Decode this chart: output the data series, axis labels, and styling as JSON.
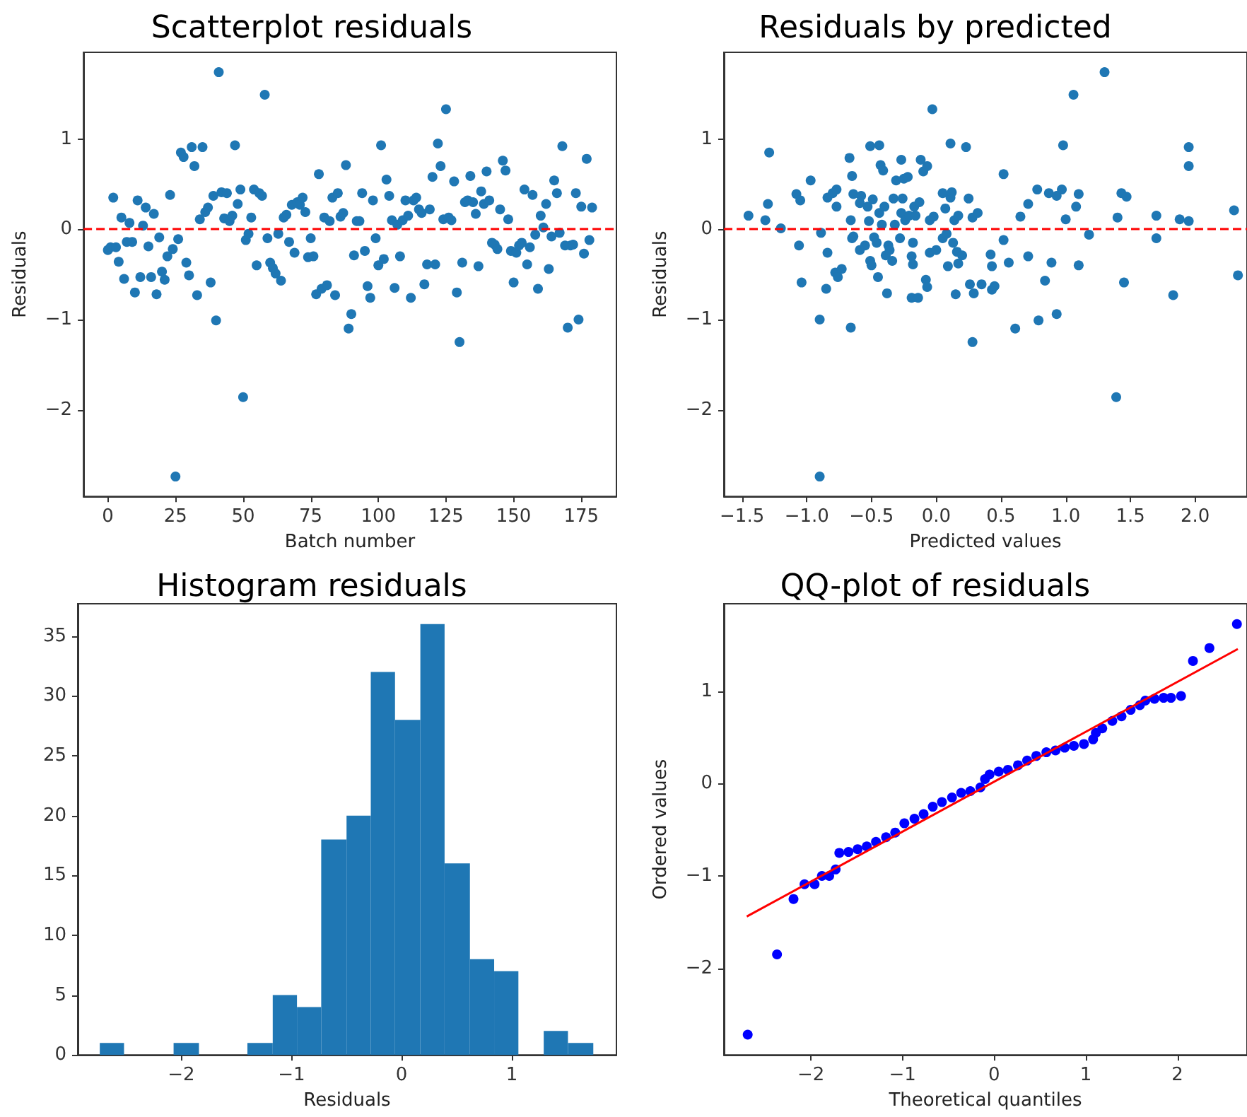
{
  "chart_data": [
    {
      "type": "scatter",
      "title": "Scatterplot residuals",
      "xlabel": "Batch number",
      "ylabel": "Residuals",
      "marker": "circle",
      "xlim": [
        -9,
        188
      ],
      "ylim": [
        -2.96,
        1.96
      ],
      "xticks": [
        0,
        25,
        50,
        75,
        100,
        125,
        150,
        175
      ],
      "yticks": [
        -2,
        -1,
        0,
        1
      ],
      "ref_lines": [
        {
          "axis": "y",
          "value": 0,
          "color": "#ff0000",
          "line_style": "dashed"
        }
      ],
      "series": [
        {
          "color": "#1f77b4",
          "x": [
            0,
            1,
            2,
            3,
            4,
            5,
            6,
            7,
            8,
            9,
            10,
            11,
            12,
            13,
            14,
            15,
            16,
            17,
            18,
            19,
            20,
            21,
            22,
            23,
            24,
            25,
            26,
            27,
            28,
            29,
            30,
            31,
            32,
            33,
            34,
            35,
            36,
            37,
            38,
            39,
            40,
            41,
            42,
            43,
            44,
            45,
            46,
            47,
            48,
            49,
            50,
            51,
            52,
            53,
            54,
            55,
            56,
            57,
            58,
            59,
            60,
            61,
            62,
            63,
            64,
            65,
            66,
            67,
            68,
            69,
            70,
            71,
            72,
            73,
            74,
            75,
            76,
            77,
            78,
            79,
            80,
            81,
            82,
            83,
            84,
            85,
            86,
            87,
            88,
            89,
            90,
            91,
            92,
            93,
            94,
            95,
            96,
            97,
            98,
            99,
            100,
            101,
            102,
            103,
            104,
            105,
            106,
            107,
            108,
            109,
            110,
            111,
            112,
            113,
            114,
            115,
            116,
            117,
            118,
            119,
            120,
            121,
            122,
            123,
            124,
            125,
            126,
            127,
            128,
            129,
            130,
            131,
            132,
            133,
            134,
            135,
            136,
            137,
            138,
            139,
            140,
            141,
            142,
            143,
            144,
            145,
            146,
            147,
            148,
            149,
            150,
            151,
            152,
            153,
            154,
            155,
            156,
            157,
            158,
            159,
            160,
            161,
            162,
            163,
            164,
            165,
            166,
            167,
            168,
            169,
            170,
            171,
            172,
            173,
            174,
            175,
            176,
            177,
            178,
            179
          ],
          "values": [
            -0.23,
            -0.2,
            0.35,
            -0.2,
            -0.36,
            0.13,
            -0.55,
            -0.14,
            0.07,
            -0.14,
            -0.7,
            0.32,
            -0.53,
            0.04,
            0.24,
            -0.19,
            -0.53,
            0.17,
            -0.72,
            -0.09,
            -0.47,
            -0.56,
            -0.3,
            0.38,
            -0.22,
            -2.74,
            -0.11,
            0.85,
            0.8,
            -0.37,
            -0.51,
            0.91,
            0.7,
            -0.73,
            0.11,
            0.91,
            0.19,
            0.24,
            -0.59,
            0.37,
            -1.01,
            1.74,
            0.41,
            0.12,
            0.4,
            0.09,
            0.15,
            0.93,
            0.28,
            0.44,
            -1.86,
            -0.12,
            -0.05,
            0.13,
            0.44,
            -0.4,
            0.4,
            0.37,
            1.49,
            -0.1,
            -0.37,
            -0.43,
            -0.49,
            -0.05,
            -0.57,
            0.13,
            0.16,
            -0.14,
            0.27,
            -0.26,
            0.3,
            0.27,
            0.35,
            0.19,
            -0.31,
            -0.1,
            -0.3,
            -0.72,
            0.61,
            -0.66,
            0.13,
            -0.62,
            0.09,
            0.35,
            -0.73,
            0.4,
            0.14,
            0.18,
            0.71,
            -1.1,
            -0.94,
            -0.29,
            0.09,
            0.09,
            0.4,
            -0.24,
            -0.63,
            -0.76,
            0.32,
            -0.1,
            -0.4,
            0.93,
            -0.33,
            0.55,
            0.37,
            0.1,
            -0.65,
            0.05,
            -0.3,
            0.1,
            0.32,
            0.15,
            -0.76,
            0.32,
            0.35,
            0.22,
            0.18,
            -0.61,
            -0.39,
            0.22,
            0.58,
            -0.39,
            0.95,
            0.7,
            0.11,
            1.33,
            0.13,
            0.1,
            0.53,
            -0.7,
            -1.25,
            -0.37,
            0.3,
            0.32,
            0.59,
            0.3,
            0.17,
            -0.41,
            0.42,
            0.28,
            0.64,
            0.32,
            -0.15,
            -0.17,
            -0.22,
            0.22,
            0.76,
            0.65,
            0.11,
            -0.24,
            -0.59,
            -0.26,
            -0.18,
            -0.15,
            0.44,
            -0.39,
            -0.2,
            0.38,
            -0.06,
            -0.66,
            0.15,
            0.02,
            0.28,
            -0.44,
            -0.08,
            0.54,
            0.4,
            -0.04,
            0.92,
            -0.18,
            -1.09,
            -0.18,
            -0.17,
            0.4,
            -1.0,
            0.25,
            -0.27,
            0.78,
            -0.12,
            0.24
          ]
        }
      ]
    },
    {
      "type": "scatter",
      "title": "Residuals by predicted",
      "xlabel": "Predicted values",
      "ylabel": "Residuals",
      "marker": "circle",
      "xlim": [
        -1.64,
        2.4
      ],
      "ylim": [
        -2.96,
        1.96
      ],
      "xticks": [
        {
          "value": -1.5,
          "label": "−1.5"
        },
        {
          "value": -1,
          "label": "−1.0"
        },
        {
          "value": -0.5,
          "label": "−0.5"
        },
        {
          "value": 0,
          "label": "0.0"
        },
        {
          "value": 0.5,
          "label": "0.5"
        },
        {
          "value": 1,
          "label": "1.0"
        },
        {
          "value": 1.5,
          "label": "1.5"
        },
        {
          "value": 2,
          "label": "2.0"
        }
      ],
      "yticks": [
        -2,
        -1,
        0,
        1
      ],
      "ref_lines": [
        {
          "axis": "y",
          "value": 0,
          "color": "#ff0000",
          "line_style": "dashed"
        }
      ],
      "series": [
        {
          "color": "#1f77b4",
          "x": [
            -1.45,
            -1.32,
            -1.3,
            -1.29,
            -1.2,
            -1.08,
            -1.06,
            -1.05,
            -1.04,
            -0.97,
            -0.9,
            -0.9,
            -0.89,
            -0.85,
            -0.84,
            -0.84,
            -0.8,
            -0.78,
            -0.77,
            -0.77,
            -0.76,
            -0.73,
            -0.67,
            -0.66,
            -0.66,
            -0.65,
            -0.65,
            -0.64,
            -0.64,
            -0.59,
            -0.59,
            -0.58,
            -0.55,
            -0.53,
            -0.52,
            -0.51,
            -0.51,
            -0.5,
            -0.49,
            -0.48,
            -0.46,
            -0.45,
            -0.44,
            -0.44,
            -0.43,
            -0.42,
            -0.41,
            -0.4,
            -0.39,
            -0.38,
            -0.37,
            -0.36,
            -0.34,
            -0.33,
            -0.32,
            -0.31,
            -0.28,
            -0.27,
            -0.27,
            -0.26,
            -0.25,
            -0.24,
            -0.22,
            -0.21,
            -0.19,
            -0.19,
            -0.18,
            -0.18,
            -0.17,
            -0.16,
            -0.14,
            -0.13,
            -0.12,
            -0.1,
            -0.08,
            -0.07,
            -0.07,
            -0.05,
            -0.05,
            -0.03,
            -0.02,
            0.0,
            0.05,
            0.05,
            0.07,
            0.08,
            0.09,
            0.11,
            0.11,
            0.12,
            0.13,
            0.14,
            0.15,
            0.16,
            0.17,
            0.17,
            0.2,
            0.23,
            0.25,
            0.26,
            0.28,
            0.28,
            0.29,
            0.32,
            0.35,
            0.42,
            0.43,
            0.43,
            0.45,
            0.52,
            0.52,
            0.56,
            0.61,
            0.65,
            0.71,
            0.71,
            0.78,
            0.79,
            0.84,
            0.87,
            0.89,
            0.93,
            0.93,
            0.97,
            0.98,
            1.0,
            1.06,
            1.08,
            1.1,
            1.1,
            1.18,
            1.3,
            1.39,
            1.4,
            1.43,
            1.45,
            1.47,
            1.7,
            1.7,
            1.83,
            1.88,
            1.95,
            1.95,
            1.95,
            2.3,
            2.33
          ],
          "values": [
            0.15,
            0.1,
            0.28,
            0.85,
            0.01,
            0.39,
            -0.18,
            0.32,
            -0.59,
            0.54,
            -1.0,
            -2.74,
            -0.04,
            -0.66,
            -0.26,
            0.35,
            0.4,
            -0.48,
            0.44,
            0.25,
            -0.53,
            -0.44,
            0.79,
            0.1,
            -1.09,
            -0.1,
            0.59,
            0.39,
            -0.08,
            0.29,
            -0.23,
            0.37,
            -0.18,
            0.25,
            0.09,
            0.92,
            -0.35,
            -0.4,
            0.33,
            -0.09,
            -0.15,
            -0.53,
            0.93,
            0.18,
            0.71,
            0.05,
            0.65,
            0.25,
            -0.29,
            -0.71,
            -0.18,
            -0.23,
            -0.35,
            0.34,
            0.05,
            0.54,
            -0.1,
            0.18,
            0.77,
            0.34,
            0.56,
            0.1,
            0.58,
            0.15,
            -0.76,
            -0.3,
            -0.15,
            -0.39,
            0.25,
            0.15,
            -0.76,
            0.3,
            0.77,
            0.64,
            -0.56,
            0.7,
            -0.64,
            -0.26,
            0.1,
            1.33,
            0.14,
            -0.23,
            -0.1,
            0.4,
            0.23,
            -0.05,
            -0.41,
            0.95,
            0.35,
            0.41,
            -0.15,
            0.1,
            -0.72,
            -0.25,
            0.15,
            -0.38,
            -0.29,
            0.91,
            0.34,
            -0.61,
            0.13,
            -1.25,
            -0.71,
            0.18,
            -0.61,
            -0.28,
            -0.41,
            -0.67,
            -0.63,
            0.61,
            -0.12,
            -0.37,
            -1.1,
            0.14,
            0.28,
            -0.3,
            0.44,
            -1.01,
            -0.57,
            0.4,
            -0.37,
            -0.94,
            0.37,
            0.44,
            0.93,
            0.11,
            1.49,
            0.25,
            -0.4,
            0.39,
            -0.06,
            1.74,
            -1.86,
            0.13,
            0.4,
            -0.59,
            0.36,
            0.15,
            -0.1,
            -0.73,
            0.11,
            0.09,
            0.7,
            0.91,
            0.21,
            -0.51
          ]
        }
      ]
    },
    {
      "type": "histogram",
      "title": "Histogram residuals",
      "xlabel": "Residuals",
      "xlim": [
        -2.94,
        1.95
      ],
      "ylim": [
        0,
        37.7
      ],
      "xticks": [
        -2,
        -1,
        0,
        1
      ],
      "yticks": [
        0,
        5,
        10,
        15,
        20,
        25,
        30,
        35
      ],
      "color": "#1f77b4",
      "bins": [
        -2.74,
        -2.52,
        -2.07,
        -1.84,
        -1.4,
        -1.17,
        -0.95,
        -0.73,
        -0.5,
        -0.28,
        -0.06,
        0.17,
        0.39,
        0.62,
        0.84,
        1.06,
        1.29,
        1.51,
        1.74
      ],
      "values": [
        1,
        0,
        1,
        0,
        1,
        5,
        4,
        18,
        20,
        32,
        28,
        36,
        16,
        8,
        7,
        0,
        2,
        1
      ]
    },
    {
      "type": "scatter",
      "title": "QQ-plot of residuals",
      "xlabel": "Theoretical quantiles",
      "ylabel": "Ordered values",
      "marker": "circle",
      "xlim": [
        -2.95,
        2.76
      ],
      "ylim": [
        -2.94,
        1.95
      ],
      "xticks": [
        -2,
        -1,
        0,
        1,
        2
      ],
      "yticks": [
        -2,
        -1,
        0,
        1
      ],
      "series": [
        {
          "color": "#0000ff",
          "x": [
            -2.69,
            -2.37,
            -2.19,
            -2.07,
            -1.96,
            -1.88,
            -1.8,
            -1.73,
            -1.69,
            -1.59,
            -1.49,
            -1.39,
            -1.29,
            -1.18,
            -1.08,
            -0.98,
            -0.87,
            -0.77,
            -0.67,
            -0.57,
            -0.46,
            -0.36,
            -0.26,
            -0.15,
            -0.1,
            -0.05,
            0.05,
            0.15,
            0.26,
            0.36,
            0.46,
            0.57,
            0.67,
            0.77,
            0.87,
            0.98,
            1.08,
            1.11,
            1.18,
            1.29,
            1.39,
            1.49,
            1.59,
            1.65,
            1.75,
            1.85,
            1.93,
            2.04,
            2.17,
            2.35,
            2.65
          ],
          "values": [
            -2.72,
            -1.85,
            -1.25,
            -1.09,
            -1.09,
            -1.0,
            -1.0,
            -0.93,
            -0.75,
            -0.74,
            -0.71,
            -0.68,
            -0.63,
            -0.58,
            -0.53,
            -0.43,
            -0.38,
            -0.33,
            -0.25,
            -0.2,
            -0.15,
            -0.1,
            -0.08,
            -0.04,
            0.05,
            0.1,
            0.13,
            0.15,
            0.2,
            0.25,
            0.3,
            0.34,
            0.36,
            0.39,
            0.41,
            0.43,
            0.48,
            0.55,
            0.6,
            0.68,
            0.73,
            0.8,
            0.85,
            0.9,
            0.92,
            0.93,
            0.93,
            0.95,
            1.33,
            1.47,
            1.73
          ]
        },
        {
          "type": "line",
          "color": "#ff0000",
          "marker": "none",
          "x": [
            -2.7,
            2.66
          ],
          "values": [
            -1.44,
            1.46
          ]
        }
      ]
    }
  ]
}
